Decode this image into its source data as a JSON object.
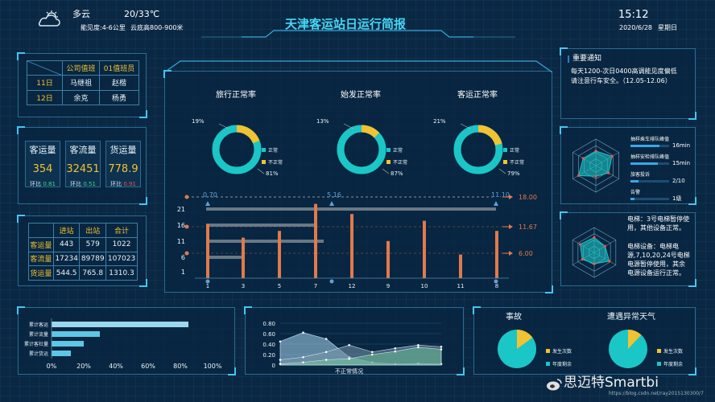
{
  "header": {
    "weather": "多云",
    "temp": "20/33℃",
    "vis": "能见度:4-6公里",
    "cloud": "云底高800-900米",
    "title": "天津客运站日运行简报",
    "time": "15:12",
    "date": "2020/6/28",
    "weekday": "星期日"
  },
  "duty": {
    "head": [
      "公司值班",
      "01值班员"
    ],
    "rows": [
      [
        "11日",
        "马继祖",
        "赵楷"
      ],
      [
        "12日",
        "余克",
        "杨勇"
      ]
    ]
  },
  "kpis": [
    {
      "label": "客运量",
      "value": "354",
      "change_label": "环比",
      "change": "0.81",
      "color": "#3ddc84"
    },
    {
      "label": "客流量",
      "value": "32451",
      "change_label": "环比",
      "change": "0.51",
      "color": "#3ddc84"
    },
    {
      "label": "货运量",
      "value": "778.9",
      "change_label": "环比",
      "change": "0.91",
      "color": "#e8584c"
    }
  ],
  "flow": {
    "head": [
      "",
      "进站",
      "出站",
      "合计"
    ],
    "rows": [
      [
        "客运量",
        "443",
        "579",
        "1022"
      ],
      [
        "客流量",
        "17234",
        "89789",
        "107023"
      ],
      [
        "货运量",
        "544.5",
        "765.8",
        "1310.3"
      ]
    ]
  },
  "donuts": [
    {
      "title": "旅行正常率",
      "pct_top": "19%",
      "pct_bot": "81%",
      "normal_label": "正常",
      "abnormal_label": "不正常",
      "normal": 81,
      "abnormal": 19
    },
    {
      "title": "始发正常率",
      "pct_top": "13%",
      "pct_bot": "87%",
      "normal_label": "正常",
      "abnormal_label": "不正常",
      "normal": 87,
      "abnormal": 13
    },
    {
      "title": "客运正常率",
      "pct_top": "21%",
      "pct_bot": "79%",
      "normal_label": "正常",
      "abnormal_label": "不正常",
      "normal": 79,
      "abnormal": 21
    }
  ],
  "chart_data": [
    {
      "type": "bar",
      "x": [
        "1",
        "3",
        "5",
        "7",
        "12",
        "9",
        "10",
        "11",
        "8"
      ],
      "y_ticks": [
        "21",
        "16",
        "11",
        "6",
        "1"
      ],
      "top_marks": [
        "0.70",
        "5.16",
        "11.10"
      ],
      "right_marks": [
        "18.00",
        "11.67",
        "6.00"
      ],
      "values": [
        16,
        12,
        14,
        22,
        19,
        11,
        17,
        7,
        14
      ],
      "h_lines": [
        21,
        16,
        11,
        6
      ]
    },
    {
      "type": "bar",
      "categories": [
        "累计客运",
        "累计流量",
        "累计客社量",
        "累计货运"
      ],
      "values": [
        0.85,
        0.3,
        0.2,
        0.12
      ],
      "ticks": [
        "0%",
        "20%",
        "40%",
        "60%",
        "80%",
        "100%"
      ]
    },
    {
      "type": "area",
      "x_label": "不正常情况",
      "y_ticks": [
        "0.80",
        "0.60",
        "0.40",
        "0.20",
        "0"
      ],
      "series": [
        {
          "values": [
            0.45,
            0.62,
            0.5,
            0.15,
            0.05,
            0.02,
            0.03,
            0.02
          ]
        },
        {
          "values": [
            0.1,
            0.15,
            0.25,
            0.38,
            0.25,
            0.32,
            0.38,
            0.35
          ]
        },
        {
          "values": [
            0.02,
            0.05,
            0.1,
            0.12,
            0.2,
            0.26,
            0.34,
            0.3
          ]
        }
      ]
    },
    {
      "type": "pie",
      "title": "事故",
      "labels": [
        "发生次数",
        "年度剩余"
      ],
      "values": [
        15,
        85
      ]
    },
    {
      "type": "pie",
      "title": "遭遇异常天气",
      "labels": [
        "发生次数",
        "年度剩余"
      ],
      "values": [
        12,
        88
      ]
    }
  ],
  "notice": {
    "title": "重要通知",
    "text1": "每天1200-次日0400高调能见度偏低",
    "text2": "请注意行车安全。（12.05-12.06）"
  },
  "radar1": {
    "labels": [
      "抽样乘车排队峰值",
      "抽样安检排队峰值",
      "旅客投诉",
      "告警"
    ],
    "values": [
      "16min",
      "15min",
      "2/10",
      "1级"
    ],
    "fractions": [
      0.75,
      0.7,
      0.2,
      0.1
    ]
  },
  "radar2": {
    "text1": "电梯：3号电梯暂停使",
    "text2": "用，其他设备正常。",
    "text3": "电梯设备：电梯电",
    "text4": "源,7,10,20,24号电梯",
    "text5": "电源暂停使用，其余",
    "text6": "电源设备运行正常。"
  },
  "brand": {
    "name": "思迈特Smartbi",
    "url": "https://blog.csdn.net/ray2015130300/7"
  }
}
